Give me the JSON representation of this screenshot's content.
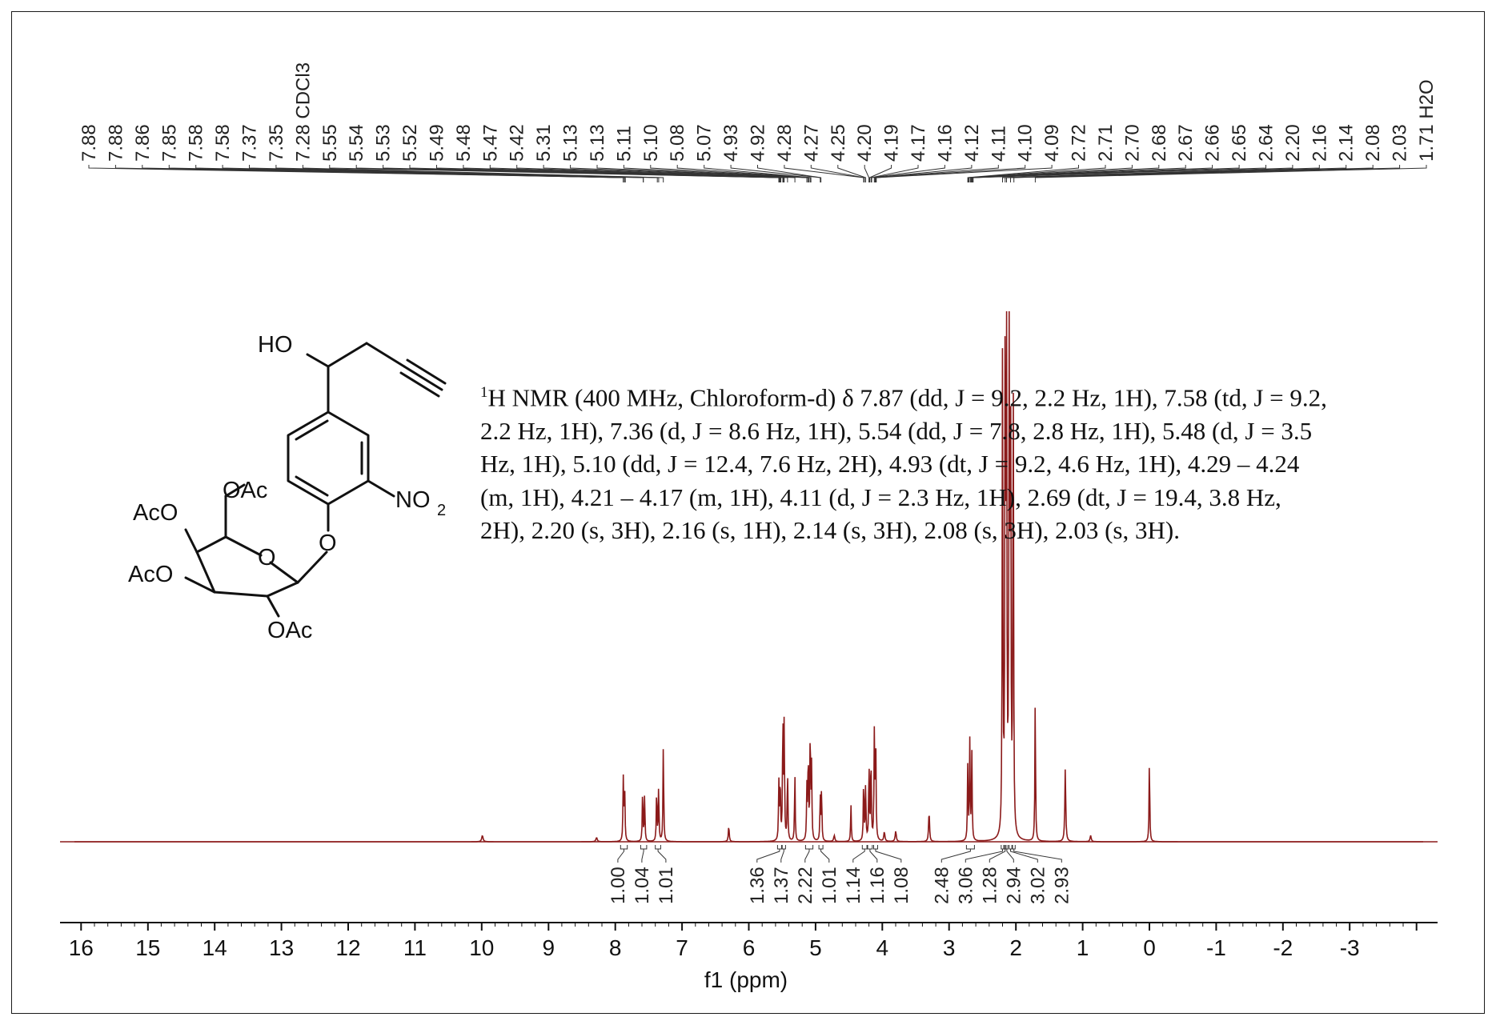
{
  "chart_data": {
    "type": "line",
    "xlabel": "f1 (ppm)",
    "xlim": [
      16.1,
      -4.1
    ],
    "x_reversed": true,
    "x_ticks": [
      "16",
      "15",
      "14",
      "13",
      "12",
      "11",
      "10",
      "9",
      "8",
      "7",
      "6",
      "5",
      "4",
      "3",
      "2",
      "1",
      "0",
      "-1",
      "-2",
      "-3"
    ],
    "line_color": "#8b1a1a",
    "peak_labels": [
      "7.88",
      "7.88",
      "7.86",
      "7.85",
      "7.58",
      "7.58",
      "7.37",
      "7.35",
      "7.28 CDCl3",
      "5.55",
      "5.54",
      "5.53",
      "5.52",
      "5.49",
      "5.48",
      "5.47",
      "5.42",
      "5.31",
      "5.13",
      "5.13",
      "5.11",
      "5.10",
      "5.08",
      "5.07",
      "4.93",
      "4.92",
      "4.28",
      "4.27",
      "4.25",
      "4.20",
      "4.19",
      "4.17",
      "4.16",
      "4.12",
      "4.11",
      "4.10",
      "4.09",
      "2.72",
      "2.71",
      "2.70",
      "2.68",
      "2.67",
      "2.66",
      "2.65",
      "2.64",
      "2.20",
      "2.16",
      "2.14",
      "2.08",
      "2.03",
      "1.71 H2O"
    ],
    "peak_positions": [
      7.88,
      7.88,
      7.86,
      7.85,
      7.58,
      7.58,
      7.37,
      7.35,
      7.28,
      5.55,
      5.54,
      5.53,
      5.52,
      5.49,
      5.48,
      5.47,
      5.42,
      5.31,
      5.13,
      5.13,
      5.11,
      5.1,
      5.08,
      5.07,
      4.93,
      4.92,
      4.28,
      4.27,
      4.25,
      4.2,
      4.19,
      4.17,
      4.16,
      4.12,
      4.11,
      4.1,
      4.09,
      2.72,
      2.71,
      2.7,
      2.68,
      2.67,
      2.66,
      2.65,
      2.64,
      2.2,
      2.16,
      2.14,
      2.08,
      2.03,
      1.71
    ],
    "peaks": [
      {
        "ppm": 9.99,
        "intensity": 0.012,
        "width": 0.012
      },
      {
        "ppm": 8.28,
        "intensity": 0.008,
        "width": 0.012
      },
      {
        "ppm": 7.88,
        "intensity": 0.12,
        "width": 0.006
      },
      {
        "ppm": 7.86,
        "intensity": 0.115,
        "width": 0.006
      },
      {
        "ppm": 7.59,
        "intensity": 0.1,
        "width": 0.006
      },
      {
        "ppm": 7.56,
        "intensity": 0.09,
        "width": 0.006
      },
      {
        "ppm": 7.38,
        "intensity": 0.1,
        "width": 0.006
      },
      {
        "ppm": 7.35,
        "intensity": 0.105,
        "width": 0.006
      },
      {
        "ppm": 7.28,
        "intensity": 0.195,
        "width": 0.006
      },
      {
        "ppm": 6.3,
        "intensity": 0.03,
        "width": 0.008
      },
      {
        "ppm": 5.55,
        "intensity": 0.11,
        "width": 0.006
      },
      {
        "ppm": 5.53,
        "intensity": 0.12,
        "width": 0.006
      },
      {
        "ppm": 5.49,
        "intensity": 0.24,
        "width": 0.006
      },
      {
        "ppm": 5.47,
        "intensity": 0.23,
        "width": 0.006
      },
      {
        "ppm": 5.42,
        "intensity": 0.14,
        "width": 0.006
      },
      {
        "ppm": 5.31,
        "intensity": 0.13,
        "width": 0.006
      },
      {
        "ppm": 5.13,
        "intensity": 0.1,
        "width": 0.006
      },
      {
        "ppm": 5.11,
        "intensity": 0.17,
        "width": 0.006
      },
      {
        "ppm": 5.08,
        "intensity": 0.22,
        "width": 0.006
      },
      {
        "ppm": 5.06,
        "intensity": 0.14,
        "width": 0.006
      },
      {
        "ppm": 4.93,
        "intensity": 0.09,
        "width": 0.006
      },
      {
        "ppm": 4.91,
        "intensity": 0.1,
        "width": 0.006
      },
      {
        "ppm": 4.72,
        "intensity": 0.012,
        "width": 0.01
      },
      {
        "ppm": 4.47,
        "intensity": 0.07,
        "width": 0.006
      },
      {
        "ppm": 4.28,
        "intensity": 0.12,
        "width": 0.006
      },
      {
        "ppm": 4.25,
        "intensity": 0.11,
        "width": 0.006
      },
      {
        "ppm": 4.2,
        "intensity": 0.15,
        "width": 0.006
      },
      {
        "ppm": 4.17,
        "intensity": 0.17,
        "width": 0.006
      },
      {
        "ppm": 4.12,
        "intensity": 0.2,
        "width": 0.006
      },
      {
        "ppm": 4.1,
        "intensity": 0.22,
        "width": 0.006
      },
      {
        "ppm": 3.97,
        "intensity": 0.018,
        "width": 0.01
      },
      {
        "ppm": 3.8,
        "intensity": 0.02,
        "width": 0.01
      },
      {
        "ppm": 3.3,
        "intensity": 0.06,
        "width": 0.008
      },
      {
        "ppm": 2.72,
        "intensity": 0.15,
        "width": 0.006
      },
      {
        "ppm": 2.69,
        "intensity": 0.19,
        "width": 0.006
      },
      {
        "ppm": 2.66,
        "intensity": 0.17,
        "width": 0.006
      },
      {
        "ppm": 2.2,
        "intensity": 0.93,
        "width": 0.006
      },
      {
        "ppm": 2.16,
        "intensity": 0.96,
        "width": 0.006
      },
      {
        "ppm": 2.14,
        "intensity": 0.99,
        "width": 0.006
      },
      {
        "ppm": 2.1,
        "intensity": 1.0,
        "width": 0.006
      },
      {
        "ppm": 2.08,
        "intensity": 0.98,
        "width": 0.006
      },
      {
        "ppm": 2.04,
        "intensity": 0.95,
        "width": 0.006
      },
      {
        "ppm": 1.71,
        "intensity": 0.27,
        "width": 0.006
      },
      {
        "ppm": 1.26,
        "intensity": 0.14,
        "width": 0.008
      },
      {
        "ppm": 0.88,
        "intensity": 0.012,
        "width": 0.01
      },
      {
        "ppm": 0.0,
        "intensity": 0.16,
        "width": 0.006
      }
    ],
    "integrals": [
      {
        "label": "1.00",
        "from": 7.92,
        "to": 7.82
      },
      {
        "label": "1.04",
        "from": 7.62,
        "to": 7.53
      },
      {
        "label": "1.01",
        "from": 7.4,
        "to": 7.32
      },
      {
        "label": "1.36",
        "from": 5.57,
        "to": 5.51
      },
      {
        "label": "1.37",
        "from": 5.5,
        "to": 5.45
      },
      {
        "label": "2.22",
        "from": 5.15,
        "to": 5.04
      },
      {
        "label": "1.01",
        "from": 4.95,
        "to": 4.89
      },
      {
        "label": "1.14",
        "from": 4.3,
        "to": 4.23
      },
      {
        "label": "1.16",
        "from": 4.22,
        "to": 4.15
      },
      {
        "label": "1.08",
        "from": 4.13,
        "to": 4.07
      },
      {
        "label": "2.48",
        "from": 2.74,
        "to": 2.62
      },
      {
        "label": "3.06",
        "from": 2.22,
        "to": 2.18
      },
      {
        "label": "1.28",
        "from": 2.17,
        "to": 2.15
      },
      {
        "label": "2.94",
        "from": 2.15,
        "to": 2.12
      },
      {
        "label": "3.02",
        "from": 2.1,
        "to": 2.06
      },
      {
        "label": "2.93",
        "from": 2.05,
        "to": 2.01
      }
    ]
  },
  "structure": {
    "labels": [
      "HO",
      "OAc",
      "AcO",
      "NO",
      "2",
      "O",
      "O",
      "AcO",
      "OAc"
    ]
  },
  "nmr_text": {
    "sup": "1",
    "body": "H NMR (400 MHz, Chloroform-d) δ 7.87 (dd, J = 9.2, 2.2 Hz, 1H), 7.58 (td, J = 9.2, 2.2 Hz, 1H), 7.36 (d, J = 8.6 Hz, 1H), 5.54 (dd, J = 7.8, 2.8 Hz, 1H), 5.48 (d, J = 3.5 Hz, 1H), 5.10 (dd, J = 12.4, 7.6 Hz, 2H), 4.93 (dt, J = 9.2, 4.6 Hz, 1H), 4.29 – 4.24 (m, 1H), 4.21 – 4.17 (m, 1H), 4.11 (d, J = 2.3 Hz, 1H), 2.69 (dt, J = 19.4, 3.8 Hz, 2H), 2.20 (s, 3H), 2.16 (s, 1H), 2.14 (s, 3H), 2.08 (s, 3H), 2.03 (s, 3H)."
  }
}
